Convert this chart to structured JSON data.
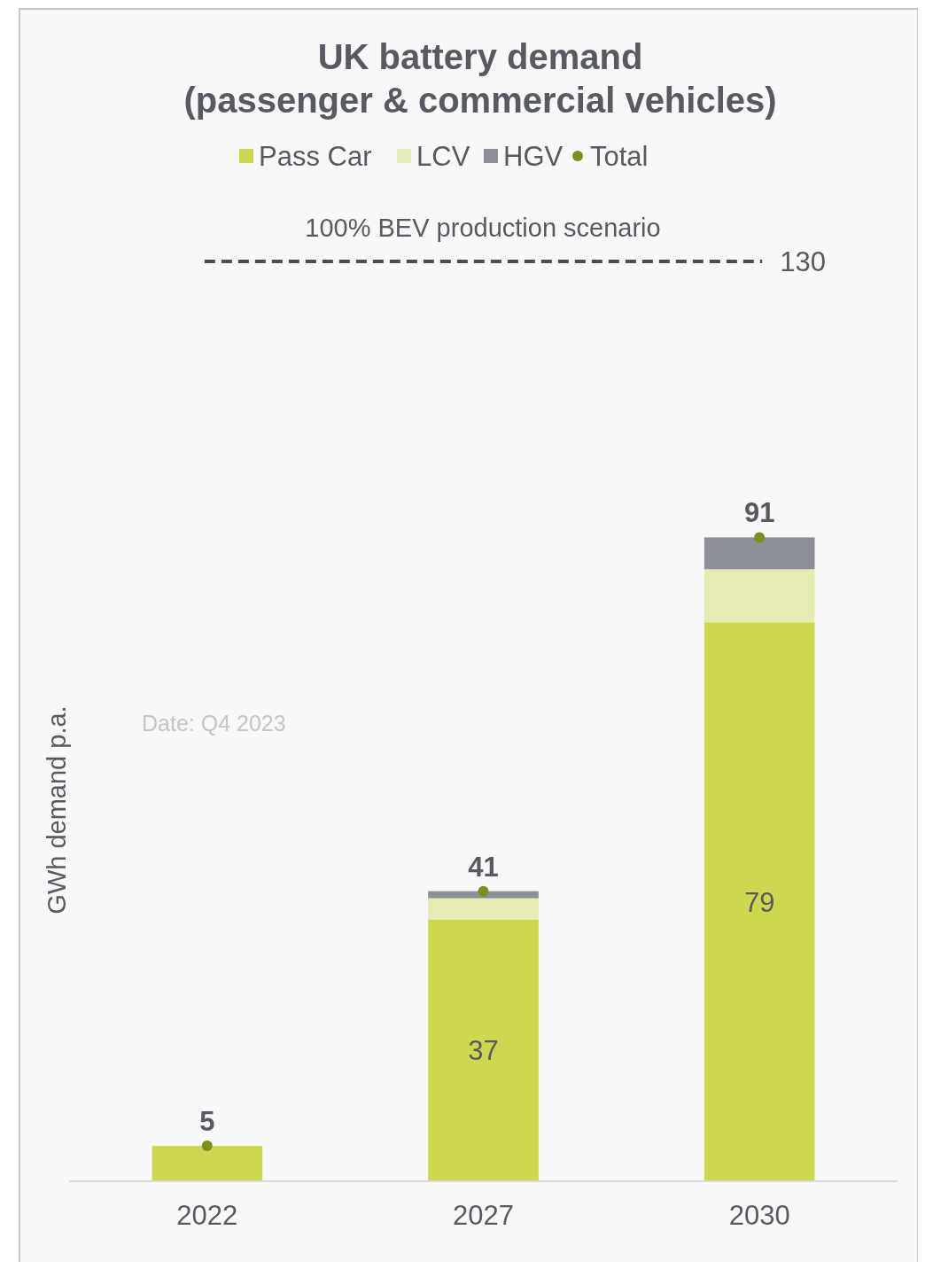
{
  "chart_data": {
    "type": "bar",
    "title": "UK battery demand\n(passenger & commercial vehicles)",
    "ylabel": "GWh demand p.a.",
    "categories": [
      "2022",
      "2027",
      "2030"
    ],
    "stacked": true,
    "tick_labels": "x",
    "legend": "top",
    "series": [
      {
        "name": "Pass Car",
        "color": "#cdd84f",
        "values": [
          5,
          37,
          79
        ],
        "value_labels": [
          null,
          "37",
          "79"
        ]
      },
      {
        "name": "LCV",
        "color": "#e6ebb3",
        "values": [
          0,
          3,
          7.5
        ]
      },
      {
        "name": "HGV",
        "color": "#8c8f96",
        "values": [
          0,
          1,
          4.5
        ]
      },
      {
        "name": "Total",
        "type": "scatter",
        "marker": "circle",
        "color": "#7f8c1e",
        "values": [
          5,
          41,
          91
        ],
        "value_labels": [
          "5",
          "41",
          "91"
        ]
      }
    ],
    "ref_lines": [
      {
        "axis": "y",
        "value": 130,
        "label": "130",
        "color": "#4a4d55",
        "line_style": "dashed"
      }
    ],
    "annotations": [
      "100% BEV production scenario",
      "Date: Q4 2023"
    ]
  }
}
